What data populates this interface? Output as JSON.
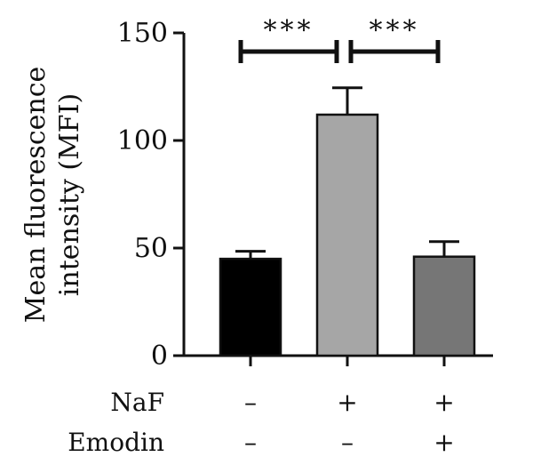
{
  "chart_data": {
    "type": "bar",
    "ylabel_lines": [
      "Mean fluorescence",
      "intensity (MFI)"
    ],
    "ylim": [
      0,
      150
    ],
    "yticks": [
      0,
      50,
      100,
      150
    ],
    "categories": [
      "1",
      "2",
      "3"
    ],
    "values": [
      45,
      112,
      46
    ],
    "errors": [
      3.5,
      12.5,
      7
    ],
    "bar_colors": [
      "#000000",
      "#a6a6a6",
      "#767676"
    ],
    "conditions": [
      {
        "label": "NaF",
        "marks": [
          "–",
          "+",
          "+"
        ]
      },
      {
        "label": "Emodin",
        "marks": [
          "–",
          "–",
          "+"
        ]
      }
    ],
    "significance": [
      {
        "from": 0,
        "to": 1,
        "label": "***"
      },
      {
        "from": 1,
        "to": 2,
        "label": "***"
      }
    ],
    "grid": false
  }
}
